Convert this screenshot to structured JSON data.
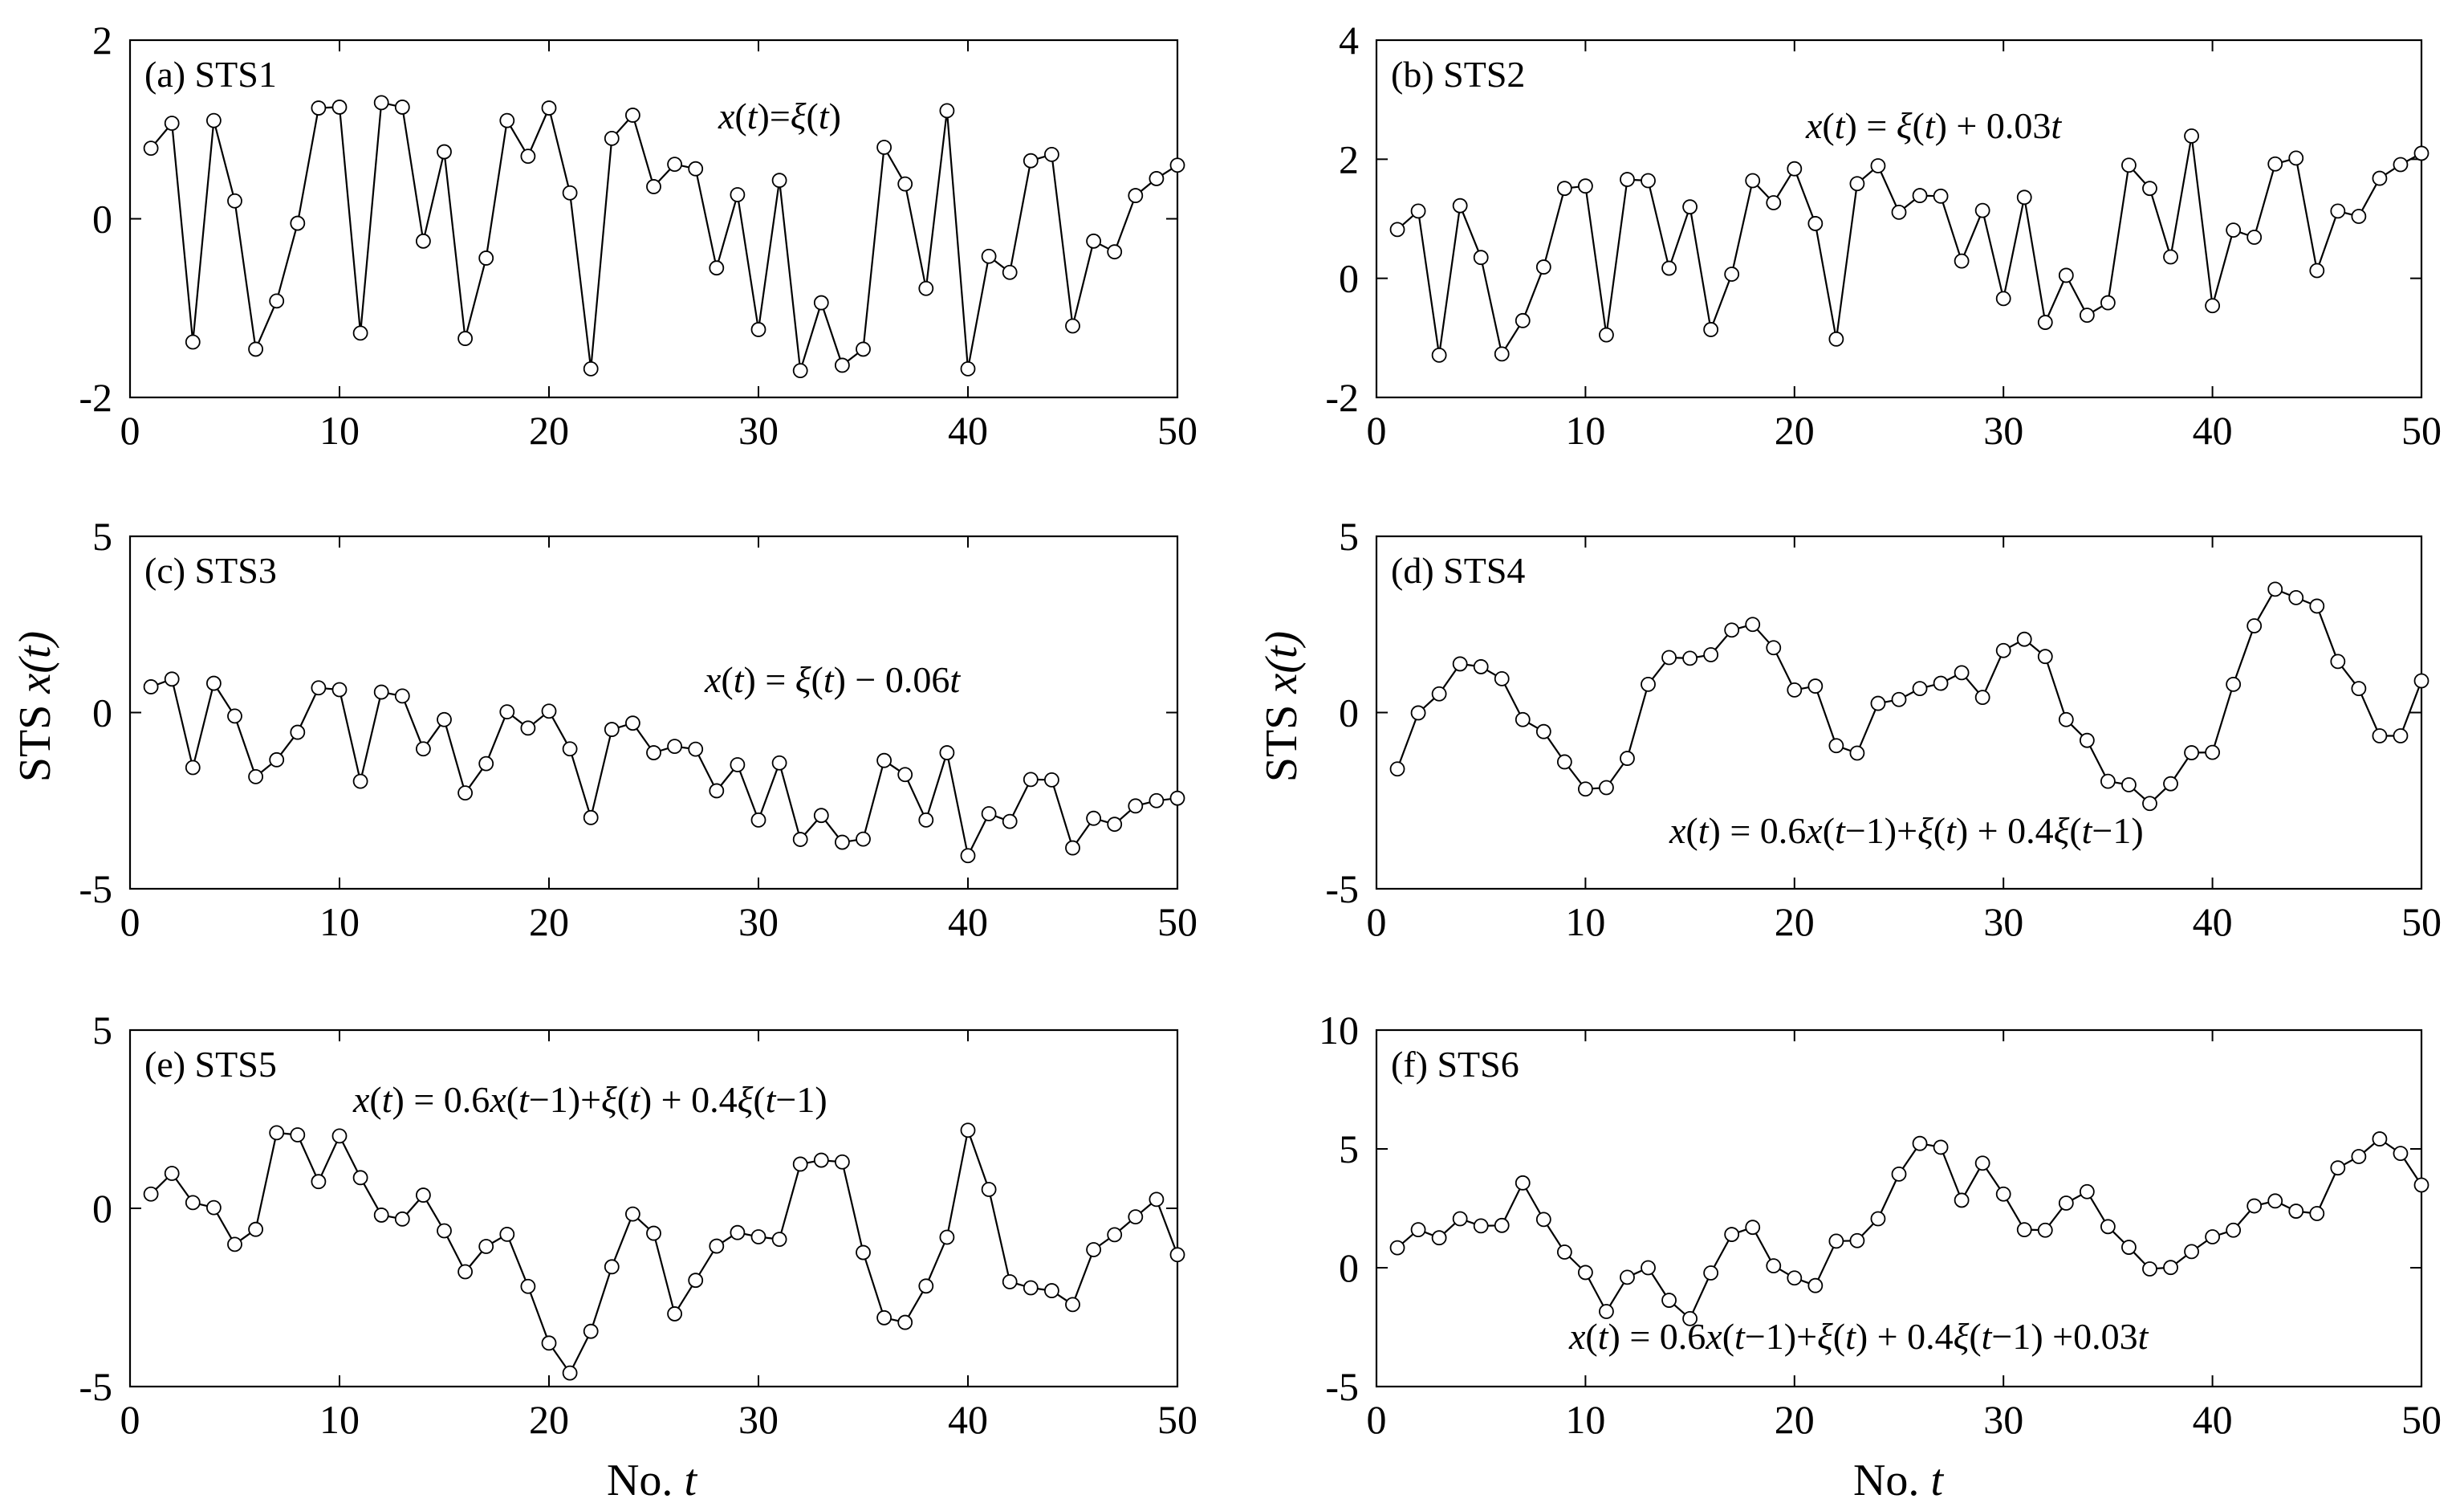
{
  "figure": {
    "xlabel_no": "No.",
    "xlabel_var": "t",
    "ylabel_prefix": "STS",
    "ylabel_var": "x(t)"
  },
  "chart_data": [
    {
      "type": "line",
      "panel_label": "(a) STS1",
      "annotation": "x(t)=ξ(t)",
      "x": [
        1,
        2,
        3,
        4,
        5,
        6,
        7,
        8,
        9,
        10,
        11,
        12,
        13,
        14,
        15,
        16,
        17,
        18,
        19,
        20,
        21,
        22,
        23,
        24,
        25,
        26,
        27,
        28,
        29,
        30,
        31,
        32,
        33,
        34,
        35,
        36,
        37,
        38,
        39,
        40,
        41,
        42,
        43,
        44,
        45,
        46,
        47,
        48,
        49,
        50
      ],
      "series": [
        {
          "values": [
            0.79,
            1.07,
            -1.38,
            1.1,
            0.2,
            -1.46,
            -0.92,
            -0.05,
            1.24,
            1.25,
            -1.28,
            1.3,
            1.25,
            -0.25,
            0.75,
            -1.34,
            -0.44,
            1.1,
            0.7,
            1.24,
            0.29,
            -1.68,
            0.9,
            1.16,
            0.36,
            0.61,
            0.56,
            -0.55,
            0.27,
            -1.24,
            0.43,
            -1.7,
            -0.94,
            -1.64,
            -1.46,
            0.8,
            0.39,
            -0.78,
            1.21,
            -1.68,
            -0.42,
            -0.6,
            0.65,
            0.72,
            -1.2,
            -0.25,
            -0.37,
            0.26,
            0.45,
            0.6
          ]
        }
      ],
      "xlim": [
        0,
        50
      ],
      "ylim": [
        -2,
        2
      ],
      "xticks": [
        "0",
        "10",
        "20",
        "30",
        "40",
        "50"
      ],
      "yticks": [
        "-2",
        "0",
        "2"
      ],
      "ytick_values": [
        -2,
        0,
        2
      ],
      "marker": "open-circle"
    },
    {
      "type": "line",
      "panel_label": "(b) STS2",
      "annotation": "x(t) = ξ(t) + 0.03t",
      "x": [
        1,
        2,
        3,
        4,
        5,
        6,
        7,
        8,
        9,
        10,
        11,
        12,
        13,
        14,
        15,
        16,
        17,
        18,
        19,
        20,
        21,
        22,
        23,
        24,
        25,
        26,
        27,
        28,
        29,
        30,
        31,
        32,
        33,
        34,
        35,
        36,
        37,
        38,
        39,
        40,
        41,
        42,
        43,
        44,
        45,
        46,
        47,
        48,
        49,
        50
      ],
      "series": [
        {
          "values": [
            0.82,
            1.13,
            -1.29,
            1.22,
            0.35,
            -1.27,
            -0.71,
            0.19,
            1.51,
            1.55,
            -0.95,
            1.66,
            1.64,
            0.17,
            1.2,
            -0.86,
            0.07,
            1.64,
            1.27,
            1.84,
            0.92,
            -1.02,
            1.59,
            1.89,
            1.11,
            1.39,
            1.38,
            0.29,
            1.14,
            -0.34,
            1.36,
            -0.74,
            0.05,
            -0.62,
            -0.41,
            1.9,
            1.51,
            0.36,
            2.39,
            -0.46,
            0.81,
            0.69,
            1.92,
            2.02,
            0.13,
            1.13,
            1.04,
            1.68,
            1.91,
            2.1
          ]
        }
      ],
      "xlim": [
        0,
        50
      ],
      "ylim": [
        -2,
        4
      ],
      "xticks": [
        "0",
        "10",
        "20",
        "30",
        "40",
        "50"
      ],
      "yticks": [
        "-2",
        "0",
        "2",
        "4"
      ],
      "ytick_values": [
        -2,
        0,
        2,
        4
      ],
      "marker": "open-circle"
    },
    {
      "type": "line",
      "panel_label": "(c) STS3",
      "annotation": "x(t) = ξ(t) − 0.06t",
      "x": [
        1,
        2,
        3,
        4,
        5,
        6,
        7,
        8,
        9,
        10,
        11,
        12,
        13,
        14,
        15,
        16,
        17,
        18,
        19,
        20,
        21,
        22,
        23,
        24,
        25,
        26,
        27,
        28,
        29,
        30,
        31,
        32,
        33,
        34,
        35,
        36,
        37,
        38,
        39,
        40,
        41,
        42,
        43,
        44,
        45,
        46,
        47,
        48,
        49,
        50
      ],
      "series": [
        {
          "values": [
            0.73,
            0.95,
            -1.56,
            0.83,
            -0.1,
            -1.82,
            -1.34,
            -0.56,
            0.7,
            0.65,
            -1.95,
            0.58,
            0.47,
            -1.03,
            -0.2,
            -2.28,
            -1.45,
            0.02,
            -0.44,
            0.04,
            -1.03,
            -2.98,
            -0.48,
            -0.3,
            -1.14,
            -0.96,
            -1.04,
            -2.22,
            -1.48,
            -3.05,
            -1.43,
            -3.6,
            -2.92,
            -3.68,
            -3.59,
            -1.36,
            -1.76,
            -3.05,
            -1.14,
            -4.06,
            -2.87,
            -3.09,
            -1.9,
            -1.91,
            -3.84,
            -3,
            -3.17,
            -2.65,
            -2.5,
            -2.43
          ]
        }
      ],
      "xlim": [
        0,
        50
      ],
      "ylim": [
        -5,
        5
      ],
      "xticks": [
        "0",
        "10",
        "20",
        "30",
        "40",
        "50"
      ],
      "yticks": [
        "-5",
        "0",
        "5"
      ],
      "ytick_values": [
        -5,
        0,
        5
      ],
      "marker": "open-circle"
    },
    {
      "type": "line",
      "panel_label": "(d) STS4",
      "annotation": "x(t) = 0.6x(t−1)+ξ(t) + 0.4ξ(t−1)",
      "x": [
        1,
        2,
        3,
        4,
        5,
        6,
        7,
        8,
        9,
        10,
        11,
        12,
        13,
        14,
        15,
        16,
        17,
        18,
        19,
        20,
        21,
        22,
        23,
        24,
        25,
        26,
        27,
        28,
        29,
        30,
        31,
        32,
        33,
        34,
        35,
        36,
        37,
        38,
        39,
        40,
        41,
        42,
        43,
        44,
        45,
        46,
        47,
        48,
        49,
        50
      ],
      "series": [
        {
          "values": [
            -1.6,
            -0.01,
            0.53,
            1.38,
            1.3,
            0.96,
            -0.2,
            -0.54,
            -1.4,
            -2.17,
            -2.13,
            -1.3,
            0.8,
            1.56,
            1.54,
            1.64,
            2.34,
            2.5,
            1.84,
            0.64,
            0.75,
            -0.94,
            -1.15,
            0.26,
            0.37,
            0.68,
            0.83,
            1.13,
            0.43,
            1.76,
            2.08,
            1.59,
            -0.2,
            -0.79,
            -1.95,
            -2.05,
            -2.58,
            -2.02,
            -1.14,
            -1.13,
            0.8,
            2.46,
            3.5,
            3.26,
            3.02,
            1.45,
            0.68,
            -0.66,
            -0.66,
            0.9
          ]
        }
      ],
      "xlim": [
        0,
        50
      ],
      "ylim": [
        -5,
        5
      ],
      "xticks": [
        "0",
        "10",
        "20",
        "30",
        "40",
        "50"
      ],
      "yticks": [
        "-5",
        "0",
        "5"
      ],
      "ytick_values": [
        -5,
        0,
        5
      ],
      "marker": "open-circle"
    },
    {
      "type": "line",
      "panel_label": "(e) STS5",
      "annotation": "x(t) = 0.6x(t−1)+ξ(t) + 0.4ξ(t−1)",
      "x": [
        1,
        2,
        3,
        4,
        5,
        6,
        7,
        8,
        9,
        10,
        11,
        12,
        13,
        14,
        15,
        16,
        17,
        18,
        19,
        20,
        21,
        22,
        23,
        24,
        25,
        26,
        27,
        28,
        29,
        30,
        31,
        32,
        33,
        34,
        35,
        36,
        37,
        38,
        39,
        40,
        41,
        42,
        43,
        44,
        45,
        46,
        47,
        48,
        49,
        50
      ],
      "series": [
        {
          "values": [
            0.4,
            0.98,
            0.16,
            0.02,
            -1.01,
            -0.59,
            2.12,
            2.06,
            0.75,
            2.03,
            0.86,
            -0.19,
            -0.3,
            0.37,
            -0.63,
            -1.78,
            -1.07,
            -0.73,
            -2.19,
            -3.78,
            -4.62,
            -3.45,
            -1.64,
            -0.16,
            -0.7,
            -2.96,
            -2.02,
            -1.06,
            -0.68,
            -0.8,
            -0.87,
            1.24,
            1.35,
            1.3,
            -1.24,
            -3.07,
            -3.2,
            -2.18,
            -0.81,
            2.19,
            0.53,
            -2.06,
            -2.23,
            -2.31,
            -2.7,
            -1.16,
            -0.74,
            -0.24,
            0.25,
            -1.3
          ]
        }
      ],
      "xlim": [
        0,
        50
      ],
      "ylim": [
        -5,
        5
      ],
      "xticks": [
        "0",
        "10",
        "20",
        "30",
        "40",
        "50"
      ],
      "yticks": [
        "-5",
        "0",
        "5"
      ],
      "ytick_values": [
        -5,
        0,
        5
      ],
      "marker": "open-circle"
    },
    {
      "type": "line",
      "panel_label": "(f) STS6",
      "annotation": "x(t) = 0.6x(t−1)+ξ(t) + 0.4ξ(t−1) +0.03t",
      "x": [
        1,
        2,
        3,
        4,
        5,
        6,
        7,
        8,
        9,
        10,
        11,
        12,
        13,
        14,
        15,
        16,
        17,
        18,
        19,
        20,
        21,
        22,
        23,
        24,
        25,
        26,
        27,
        28,
        29,
        30,
        31,
        32,
        33,
        34,
        35,
        36,
        37,
        38,
        39,
        40,
        41,
        42,
        43,
        44,
        45,
        46,
        47,
        48,
        49,
        50
      ],
      "series": [
        {
          "values": [
            0.84,
            1.6,
            1.26,
            2.06,
            1.76,
            1.78,
            3.57,
            2.03,
            0.66,
            -0.2,
            -1.84,
            -0.4,
            0,
            -1.37,
            -2.14,
            -0.22,
            1.4,
            1.7,
            0.08,
            -0.43,
            -0.75,
            1.12,
            1.14,
            2.06,
            3.94,
            5.23,
            5.07,
            2.84,
            4.4,
            3.1,
            1.6,
            1.58,
            2.72,
            3.2,
            1.73,
            0.86,
            -0.05,
            0.01,
            0.68,
            1.3,
            1.58,
            2.6,
            2.81,
            2.38,
            2.28,
            4.2,
            4.68,
            5.42,
            4.81,
            3.48
          ]
        }
      ],
      "xlim": [
        0,
        50
      ],
      "ylim": [
        -5,
        10
      ],
      "xticks": [
        "0",
        "10",
        "20",
        "30",
        "40",
        "50"
      ],
      "yticks": [
        "-5",
        "0",
        "5",
        "10"
      ],
      "ytick_values": [
        -5,
        0,
        5,
        10
      ],
      "marker": "open-circle"
    }
  ]
}
